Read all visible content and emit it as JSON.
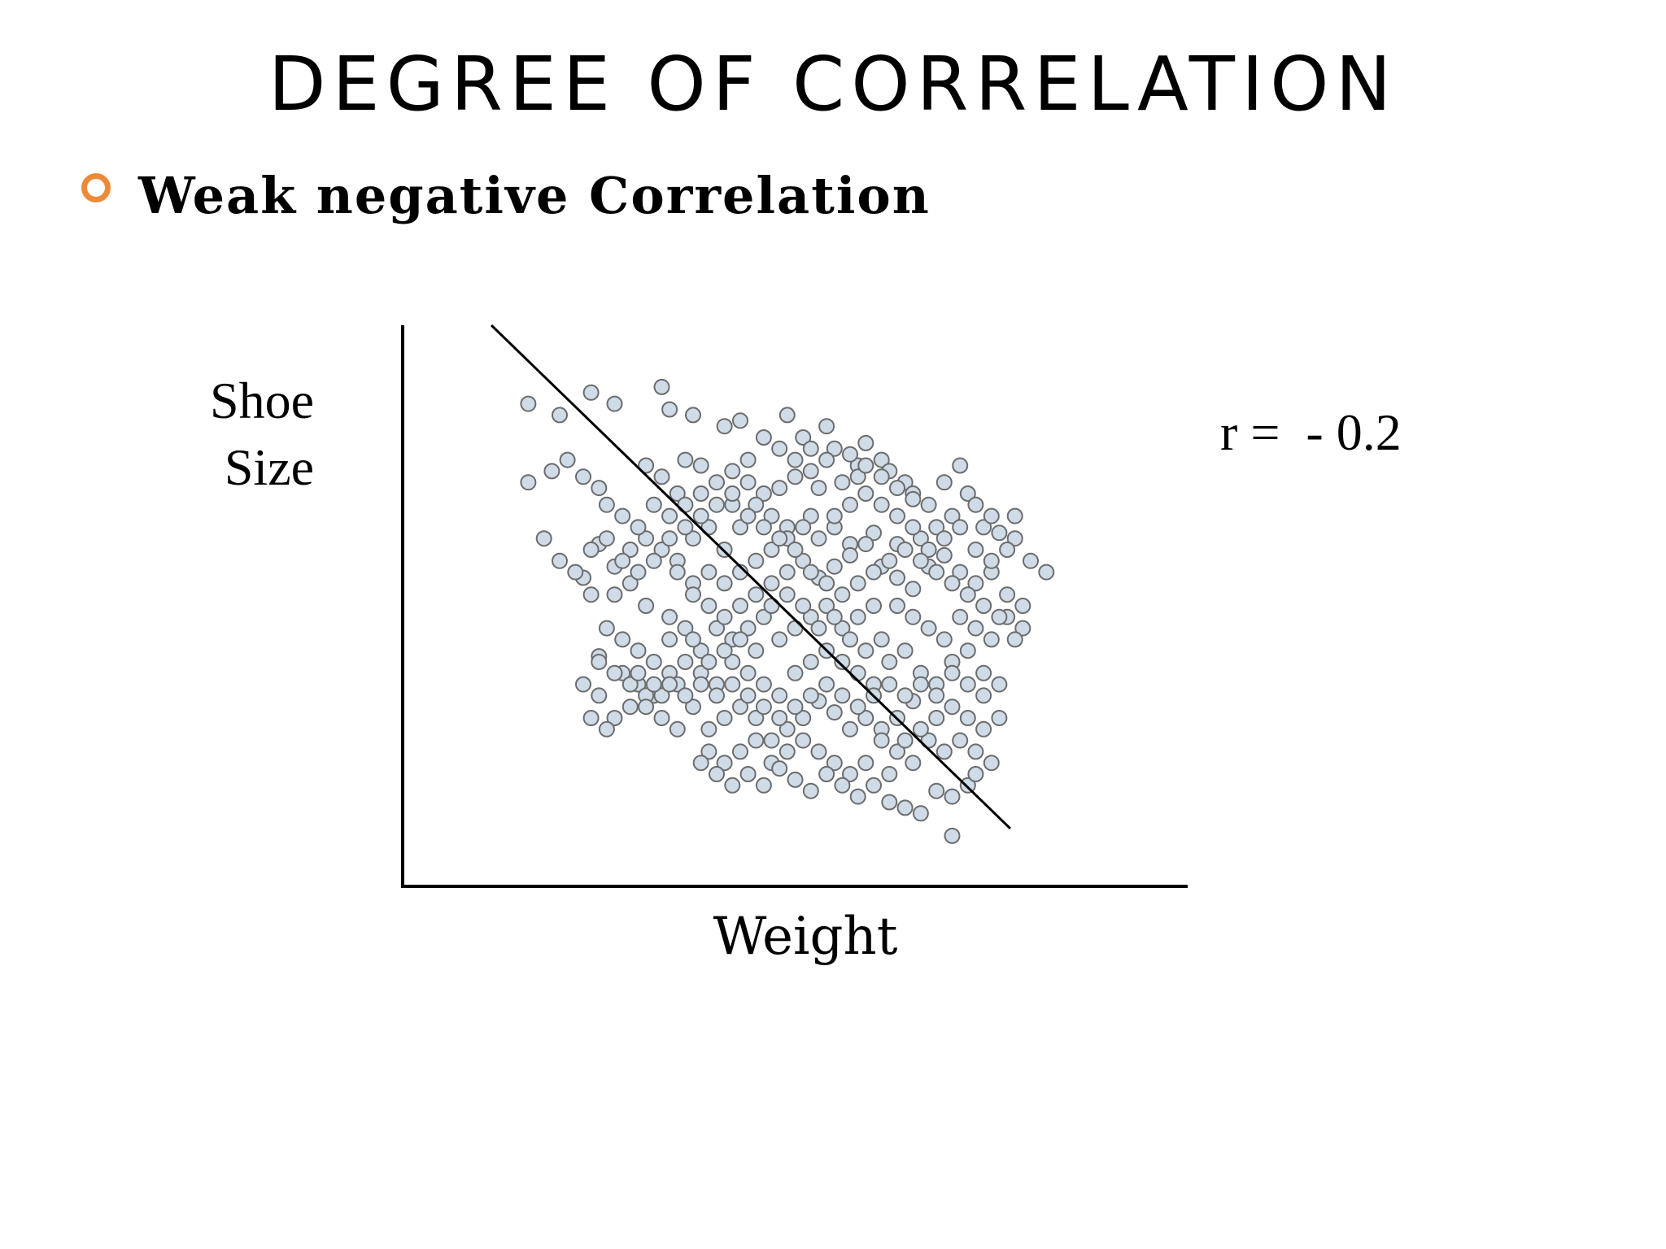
{
  "slide": {
    "title": "DEGREE OF CORRELATION",
    "bullet": "Weak negative Correlation",
    "bullet_color": "#ec8a3a"
  },
  "chart_data": {
    "type": "scatter",
    "title": "",
    "xlabel": "Weight",
    "ylabel_lines": [
      "Shoe",
      "Size"
    ],
    "annotation": "r =  - 0.2",
    "xlim": [
      0,
      100
    ],
    "ylim": [
      0,
      100
    ],
    "grid": false,
    "point_fill": "#cfdbe7",
    "point_stroke": "#6c6c6c",
    "trend_line": [
      [
        11.3,
        100
      ],
      [
        77.4,
        10.3
      ]
    ],
    "points": [
      [
        16,
        86
      ],
      [
        20,
        84
      ],
      [
        24,
        88
      ],
      [
        27,
        86
      ],
      [
        33,
        89
      ],
      [
        34,
        85
      ],
      [
        37,
        84
      ],
      [
        41,
        82
      ],
      [
        43,
        83
      ],
      [
        49,
        84
      ],
      [
        51,
        80
      ],
      [
        54,
        82
      ],
      [
        55,
        78
      ],
      [
        19,
        74
      ],
      [
        21,
        76
      ],
      [
        16,
        72
      ],
      [
        23,
        73
      ],
      [
        25,
        71
      ],
      [
        31,
        75
      ],
      [
        33,
        73
      ],
      [
        36,
        76
      ],
      [
        38,
        75
      ],
      [
        35,
        70
      ],
      [
        42,
        68
      ],
      [
        44,
        72
      ],
      [
        46,
        70
      ],
      [
        48,
        71
      ],
      [
        50,
        73
      ],
      [
        52,
        74
      ],
      [
        53,
        71
      ],
      [
        56,
        72
      ],
      [
        58,
        75
      ],
      [
        59,
        79
      ],
      [
        58,
        73
      ],
      [
        61,
        76
      ],
      [
        62,
        74
      ],
      [
        64,
        72
      ],
      [
        65,
        70
      ],
      [
        67,
        68
      ],
      [
        69,
        72
      ],
      [
        71,
        75
      ],
      [
        72,
        70
      ],
      [
        70,
        66
      ],
      [
        74,
        64
      ],
      [
        75,
        66
      ],
      [
        73,
        68
      ],
      [
        76,
        63
      ],
      [
        78,
        62
      ],
      [
        68,
        64
      ],
      [
        66,
        62
      ],
      [
        63,
        61
      ],
      [
        60,
        63
      ],
      [
        57,
        61
      ],
      [
        55,
        64
      ],
      [
        52,
        66
      ],
      [
        49,
        64
      ],
      [
        47,
        66
      ],
      [
        45,
        68
      ],
      [
        43,
        64
      ],
      [
        41,
        60
      ],
      [
        39,
        64
      ],
      [
        37,
        62
      ],
      [
        35,
        58
      ],
      [
        33,
        60
      ],
      [
        31,
        62
      ],
      [
        29,
        60
      ],
      [
        27,
        57
      ],
      [
        25,
        61
      ],
      [
        23,
        55
      ],
      [
        24,
        52
      ],
      [
        27,
        52
      ],
      [
        29,
        54
      ],
      [
        31,
        50
      ],
      [
        34,
        48
      ],
      [
        37,
        54
      ],
      [
        39,
        56
      ],
      [
        41,
        54
      ],
      [
        43,
        50
      ],
      [
        45,
        52
      ],
      [
        47,
        54
      ],
      [
        49,
        56
      ],
      [
        51,
        58
      ],
      [
        53,
        55
      ],
      [
        55,
        57
      ],
      [
        57,
        59
      ],
      [
        59,
        61
      ],
      [
        61,
        57
      ],
      [
        63,
        55
      ],
      [
        65,
        53
      ],
      [
        67,
        57
      ],
      [
        69,
        59
      ],
      [
        71,
        56
      ],
      [
        73,
        54
      ],
      [
        75,
        56
      ],
      [
        77,
        52
      ],
      [
        79,
        50
      ],
      [
        60,
        50
      ],
      [
        58,
        48
      ],
      [
        56,
        46
      ],
      [
        54,
        50
      ],
      [
        52,
        48
      ],
      [
        50,
        46
      ],
      [
        48,
        44
      ],
      [
        46,
        48
      ],
      [
        44,
        46
      ],
      [
        42,
        44
      ],
      [
        40,
        46
      ],
      [
        38,
        42
      ],
      [
        36,
        46
      ],
      [
        34,
        44
      ],
      [
        32,
        40
      ],
      [
        30,
        42
      ],
      [
        28,
        44
      ],
      [
        26,
        46
      ],
      [
        25,
        41
      ],
      [
        28,
        38
      ],
      [
        30,
        36
      ],
      [
        32,
        34
      ],
      [
        34,
        38
      ],
      [
        36,
        40
      ],
      [
        38,
        38
      ],
      [
        40,
        36
      ],
      [
        42,
        40
      ],
      [
        44,
        38
      ],
      [
        46,
        36
      ],
      [
        48,
        34
      ],
      [
        50,
        38
      ],
      [
        52,
        40
      ],
      [
        54,
        42
      ],
      [
        56,
        40
      ],
      [
        58,
        38
      ],
      [
        60,
        36
      ],
      [
        62,
        40
      ],
      [
        64,
        42
      ],
      [
        66,
        38
      ],
      [
        68,
        36
      ],
      [
        70,
        40
      ],
      [
        72,
        42
      ],
      [
        74,
        38
      ],
      [
        76,
        36
      ],
      [
        65,
        33
      ],
      [
        63,
        30
      ],
      [
        61,
        28
      ],
      [
        59,
        30
      ],
      [
        57,
        28
      ],
      [
        55,
        31
      ],
      [
        53,
        33
      ],
      [
        51,
        30
      ],
      [
        49,
        28
      ],
      [
        47,
        26
      ],
      [
        45,
        30
      ],
      [
        43,
        32
      ],
      [
        41,
        30
      ],
      [
        39,
        28
      ],
      [
        37,
        32
      ],
      [
        35,
        28
      ],
      [
        33,
        30
      ],
      [
        31,
        34
      ],
      [
        29,
        32
      ],
      [
        27,
        30
      ],
      [
        25,
        34
      ],
      [
        23,
        36
      ],
      [
        24,
        30
      ],
      [
        26,
        28
      ],
      [
        39,
        24
      ],
      [
        41,
        22
      ],
      [
        43,
        24
      ],
      [
        45,
        26
      ],
      [
        47,
        22
      ],
      [
        49,
        24
      ],
      [
        51,
        26
      ],
      [
        53,
        24
      ],
      [
        55,
        22
      ],
      [
        57,
        20
      ],
      [
        59,
        22
      ],
      [
        61,
        26
      ],
      [
        63,
        24
      ],
      [
        65,
        22
      ],
      [
        67,
        26
      ],
      [
        69,
        24
      ],
      [
        71,
        26
      ],
      [
        73,
        24
      ],
      [
        74,
        28
      ],
      [
        72,
        30
      ],
      [
        70,
        32
      ],
      [
        68,
        30
      ],
      [
        66,
        28
      ],
      [
        64,
        26
      ],
      [
        62,
        20
      ],
      [
        60,
        18
      ],
      [
        58,
        16
      ],
      [
        56,
        18
      ],
      [
        54,
        20
      ],
      [
        52,
        17
      ],
      [
        50,
        19
      ],
      [
        48,
        21
      ],
      [
        46,
        18
      ],
      [
        44,
        20
      ],
      [
        42,
        18
      ],
      [
        40,
        20
      ],
      [
        38,
        22
      ],
      [
        62,
        15
      ],
      [
        64,
        14
      ],
      [
        66,
        13
      ],
      [
        68,
        17
      ],
      [
        70,
        16
      ],
      [
        72,
        18
      ],
      [
        70,
        9
      ],
      [
        73,
        20
      ],
      [
        75,
        22
      ],
      [
        35,
        56
      ],
      [
        37,
        52
      ],
      [
        39,
        50
      ],
      [
        41,
        48
      ],
      [
        43,
        56
      ],
      [
        45,
        58
      ],
      [
        47,
        60
      ],
      [
        49,
        62
      ],
      [
        51,
        64
      ],
      [
        53,
        62
      ],
      [
        55,
        66
      ],
      [
        57,
        68
      ],
      [
        59,
        70
      ],
      [
        61,
        68
      ],
      [
        63,
        66
      ],
      [
        65,
        64
      ],
      [
        67,
        60
      ],
      [
        69,
        62
      ],
      [
        71,
        64
      ],
      [
        73,
        60
      ],
      [
        75,
        58
      ],
      [
        77,
        60
      ],
      [
        78,
        66
      ],
      [
        80,
        58
      ],
      [
        82,
        56
      ],
      [
        79,
        46
      ],
      [
        77,
        48
      ],
      [
        75,
        44
      ],
      [
        73,
        46
      ],
      [
        71,
        48
      ],
      [
        69,
        44
      ],
      [
        67,
        46
      ],
      [
        65,
        48
      ],
      [
        63,
        50
      ],
      [
        61,
        44
      ],
      [
        59,
        42
      ],
      [
        57,
        44
      ],
      [
        55,
        48
      ],
      [
        53,
        46
      ],
      [
        51,
        50
      ],
      [
        49,
        52
      ],
      [
        47,
        50
      ],
      [
        45,
        42
      ],
      [
        43,
        44
      ],
      [
        41,
        42
      ],
      [
        39,
        40
      ],
      [
        37,
        44
      ],
      [
        35,
        36
      ],
      [
        33,
        34
      ],
      [
        31,
        32
      ],
      [
        29,
        36
      ],
      [
        27,
        38
      ],
      [
        25,
        40
      ],
      [
        57,
        77
      ],
      [
        59,
        75
      ],
      [
        61,
        73
      ],
      [
        63,
        71
      ],
      [
        65,
        69
      ],
      [
        54,
        76
      ],
      [
        52,
        78
      ],
      [
        50,
        76
      ],
      [
        48,
        78
      ],
      [
        46,
        80
      ],
      [
        44,
        76
      ],
      [
        42,
        74
      ],
      [
        40,
        72
      ],
      [
        38,
        70
      ],
      [
        36,
        68
      ],
      [
        34,
        66
      ],
      [
        32,
        68
      ],
      [
        30,
        64
      ],
      [
        28,
        66
      ],
      [
        26,
        68
      ],
      [
        18,
        62
      ],
      [
        20,
        58
      ],
      [
        22,
        56
      ],
      [
        24,
        60
      ],
      [
        26,
        62
      ],
      [
        28,
        58
      ],
      [
        30,
        56
      ],
      [
        32,
        58
      ],
      [
        34,
        62
      ],
      [
        36,
        64
      ],
      [
        38,
        66
      ],
      [
        40,
        68
      ],
      [
        42,
        70
      ],
      [
        44,
        66
      ],
      [
        46,
        64
      ],
      [
        48,
        62
      ],
      [
        50,
        60
      ],
      [
        52,
        56
      ],
      [
        54,
        54
      ],
      [
        56,
        52
      ],
      [
        58,
        54
      ],
      [
        60,
        56
      ],
      [
        62,
        58
      ],
      [
        64,
        60
      ],
      [
        66,
        58
      ],
      [
        68,
        56
      ],
      [
        70,
        54
      ],
      [
        72,
        52
      ],
      [
        74,
        50
      ],
      [
        76,
        48
      ],
      [
        78,
        44
      ],
      [
        74,
        34
      ],
      [
        76,
        30
      ],
      [
        72,
        36
      ],
      [
        70,
        38
      ],
      [
        68,
        34
      ],
      [
        66,
        36
      ],
      [
        64,
        34
      ],
      [
        62,
        36
      ],
      [
        60,
        34
      ],
      [
        58,
        32
      ],
      [
        56,
        34
      ],
      [
        54,
        36
      ],
      [
        52,
        34
      ],
      [
        50,
        32
      ],
      [
        48,
        30
      ],
      [
        46,
        32
      ],
      [
        44,
        34
      ],
      [
        42,
        36
      ],
      [
        40,
        34
      ],
      [
        38,
        36
      ],
      [
        36,
        34
      ],
      [
        34,
        36
      ],
      [
        32,
        36
      ],
      [
        30,
        38
      ]
    ]
  }
}
